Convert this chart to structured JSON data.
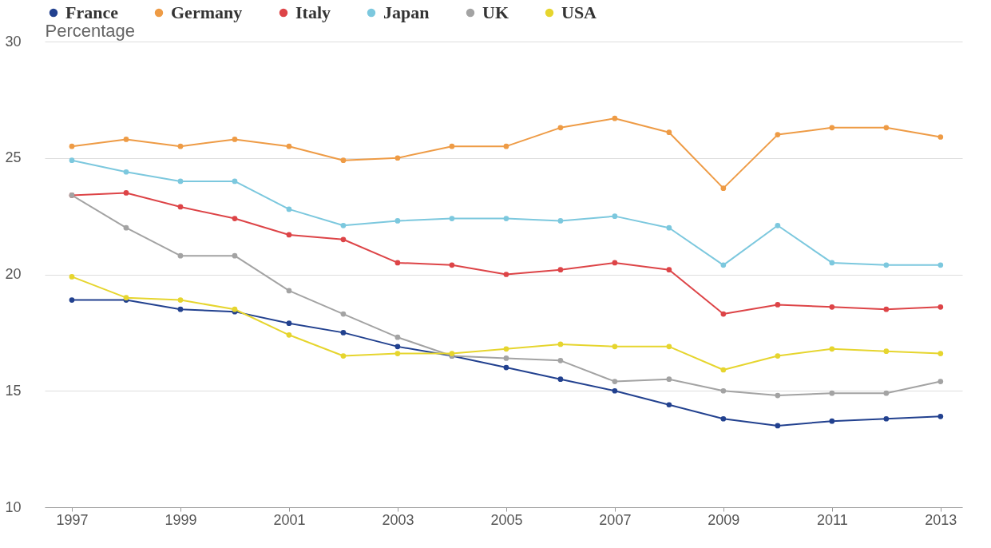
{
  "chart_data": {
    "type": "line",
    "ylabel": "Percentage",
    "x": [
      1997,
      1998,
      1999,
      2000,
      2001,
      2002,
      2003,
      2004,
      2005,
      2006,
      2007,
      2008,
      2009,
      2010,
      2011,
      2012,
      2013
    ],
    "series": [
      {
        "name": "France",
        "color": "#22418f",
        "values": [
          18.9,
          18.9,
          18.5,
          18.4,
          17.9,
          17.5,
          16.9,
          16.5,
          16.0,
          15.5,
          15.0,
          14.4,
          13.8,
          13.5,
          13.7,
          13.8,
          13.9
        ]
      },
      {
        "name": "Germany",
        "color": "#ee9b45",
        "values": [
          25.5,
          25.8,
          25.5,
          25.8,
          25.5,
          24.9,
          25.0,
          25.5,
          25.5,
          26.3,
          26.7,
          26.1,
          23.7,
          26.0,
          26.3,
          26.3,
          25.9
        ]
      },
      {
        "name": "Italy",
        "color": "#dd4447",
        "values": [
          23.4,
          23.5,
          22.9,
          22.4,
          21.7,
          21.5,
          20.5,
          20.4,
          20.0,
          20.2,
          20.5,
          20.2,
          18.3,
          18.7,
          18.6,
          18.5,
          18.6
        ]
      },
      {
        "name": "Japan",
        "color": "#7cc8de",
        "values": [
          24.9,
          24.4,
          24.0,
          24.0,
          22.8,
          22.1,
          22.3,
          22.4,
          22.4,
          22.3,
          22.5,
          22.0,
          20.4,
          22.1,
          20.5,
          20.4,
          20.4
        ]
      },
      {
        "name": "UK",
        "color": "#a3a3a3",
        "values": [
          23.4,
          22.0,
          20.8,
          20.8,
          19.3,
          18.3,
          17.3,
          16.5,
          16.4,
          16.3,
          15.4,
          15.5,
          15.0,
          14.8,
          14.9,
          14.9,
          15.4
        ]
      },
      {
        "name": "USA",
        "color": "#e6d52e",
        "values": [
          19.9,
          19.0,
          18.9,
          18.5,
          17.4,
          16.5,
          16.6,
          16.6,
          16.8,
          17.0,
          16.9,
          16.9,
          15.9,
          16.5,
          16.8,
          16.7,
          16.6
        ]
      }
    ],
    "xlim": [
      1996.5,
      2013.4
    ],
    "xticks": [
      1997,
      1999,
      2001,
      2003,
      2005,
      2007,
      2009,
      2011,
      2013
    ],
    "ylim": [
      10,
      30
    ],
    "yticks": [
      10,
      15,
      20,
      25,
      30
    ],
    "grid": "y",
    "legend": "top",
    "marker": "circle",
    "line_style": "solid"
  }
}
